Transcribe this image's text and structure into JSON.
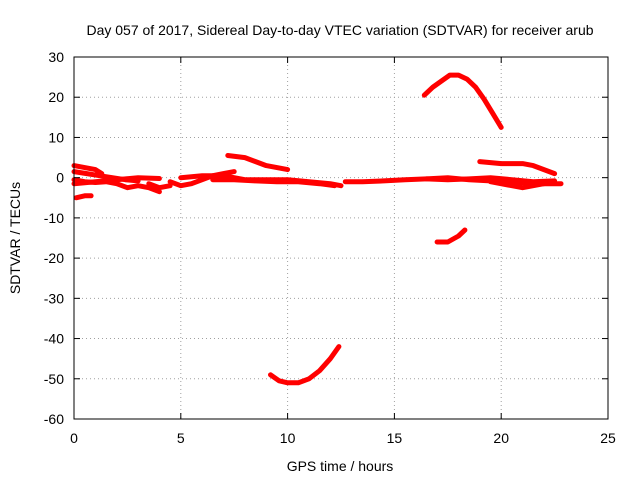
{
  "chart_data": {
    "type": "scatter",
    "title": "Day 057 of 2017, Sidereal Day-to-day VTEC variation (SDTVAR) for receiver arub",
    "xlabel": "GPS time / hours",
    "ylabel": "SDTVAR / TECUs",
    "xlim": [
      0,
      25
    ],
    "ylim": [
      -60,
      30
    ],
    "xticks": [
      0,
      5,
      10,
      15,
      20,
      25
    ],
    "yticks": [
      -60,
      -50,
      -40,
      -30,
      -20,
      -10,
      0,
      10,
      20,
      30
    ],
    "grid": true,
    "series_color": "#ff0000",
    "series": [
      {
        "points": [
          [
            0.0,
            3.0
          ],
          [
            0.5,
            2.5
          ],
          [
            1.0,
            2.0
          ],
          [
            1.3,
            1.0
          ]
        ]
      },
      {
        "points": [
          [
            0.0,
            1.5
          ],
          [
            0.6,
            1.0
          ],
          [
            1.2,
            0.5
          ],
          [
            1.8,
            0.0
          ],
          [
            2.4,
            -0.5
          ],
          [
            3.0,
            -0.8
          ]
        ]
      },
      {
        "points": [
          [
            0.0,
            -0.5
          ],
          [
            0.5,
            -1.0
          ],
          [
            1.0,
            -1.2
          ],
          [
            1.5,
            -1.0
          ],
          [
            2.0,
            -1.5
          ],
          [
            2.5,
            -2.5
          ],
          [
            3.0,
            -2.0
          ],
          [
            3.5,
            -2.5
          ],
          [
            4.0,
            -3.5
          ]
        ]
      },
      {
        "points": [
          [
            0.0,
            -1.5
          ],
          [
            1.0,
            -1.0
          ],
          [
            2.0,
            -0.5
          ],
          [
            3.0,
            0.0
          ],
          [
            4.0,
            -0.2
          ]
        ]
      },
      {
        "points": [
          [
            0.1,
            -5.0
          ],
          [
            0.5,
            -4.5
          ],
          [
            0.8,
            -4.5
          ]
        ]
      },
      {
        "points": [
          [
            3.5,
            -1.5
          ],
          [
            4.0,
            -2.5
          ],
          [
            4.5,
            -2.0
          ]
        ]
      },
      {
        "points": [
          [
            4.5,
            -1.0
          ],
          [
            5.0,
            -2.0
          ],
          [
            5.5,
            -1.5
          ],
          [
            6.0,
            -0.5
          ],
          [
            6.5,
            0.5
          ],
          [
            7.0,
            1.0
          ],
          [
            7.5,
            1.5
          ]
        ]
      },
      {
        "points": [
          [
            5.0,
            0.0
          ],
          [
            6.0,
            0.5
          ],
          [
            7.0,
            0.5
          ],
          [
            8.0,
            -0.5
          ],
          [
            9.0,
            -0.5
          ],
          [
            10.0,
            -0.5
          ],
          [
            11.0,
            -1.0
          ],
          [
            12.0,
            -1.5
          ],
          [
            12.5,
            -2.0
          ]
        ]
      },
      {
        "points": [
          [
            6.5,
            -0.5
          ],
          [
            7.5,
            -0.5
          ],
          [
            8.5,
            -0.8
          ],
          [
            9.5,
            -1.0
          ],
          [
            10.5,
            -1.0
          ],
          [
            11.5,
            -1.5
          ],
          [
            12.2,
            -2.0
          ]
        ]
      },
      {
        "points": [
          [
            7.2,
            5.5
          ],
          [
            8.0,
            5.0
          ],
          [
            8.5,
            4.0
          ],
          [
            9.0,
            3.0
          ],
          [
            9.5,
            2.5
          ],
          [
            10.0,
            2.0
          ]
        ]
      },
      {
        "points": [
          [
            12.7,
            -1.0
          ],
          [
            13.5,
            -1.0
          ],
          [
            14.5,
            -0.8
          ],
          [
            15.5,
            -0.5
          ],
          [
            16.5,
            -0.3
          ],
          [
            17.5,
            0.0
          ],
          [
            18.5,
            -0.5
          ],
          [
            19.5,
            -0.8
          ],
          [
            20.5,
            -1.0
          ],
          [
            21.5,
            -1.5
          ],
          [
            22.5,
            -1.5
          ],
          [
            22.8,
            -1.5
          ]
        ]
      },
      {
        "points": [
          [
            16.5,
            -0.3
          ],
          [
            17.5,
            -0.5
          ],
          [
            18.5,
            -0.3
          ],
          [
            19.5,
            0.0
          ],
          [
            20.5,
            -0.5
          ],
          [
            21.5,
            -1.0
          ],
          [
            22.5,
            -0.8
          ]
        ]
      },
      {
        "points": [
          [
            19.0,
            4.0
          ],
          [
            20.0,
            3.5
          ],
          [
            21.0,
            3.5
          ],
          [
            21.5,
            3.0
          ],
          [
            22.0,
            2.0
          ],
          [
            22.5,
            1.0
          ]
        ]
      },
      {
        "points": [
          [
            19.5,
            -1.0
          ],
          [
            20.5,
            -2.0
          ],
          [
            21.0,
            -2.5
          ],
          [
            21.5,
            -2.0
          ],
          [
            22.0,
            -1.5
          ]
        ]
      },
      {
        "points": [
          [
            16.4,
            20.5
          ],
          [
            16.8,
            22.5
          ],
          [
            17.2,
            24.0
          ],
          [
            17.6,
            25.5
          ],
          [
            18.0,
            25.5
          ],
          [
            18.4,
            24.5
          ],
          [
            18.8,
            22.5
          ],
          [
            19.2,
            19.5
          ],
          [
            19.6,
            16.0
          ],
          [
            20.0,
            12.5
          ]
        ]
      },
      {
        "points": [
          [
            17.0,
            -16.0
          ],
          [
            17.5,
            -16.0
          ],
          [
            18.0,
            -14.5
          ],
          [
            18.3,
            -13.0
          ]
        ]
      },
      {
        "points": [
          [
            9.2,
            -49.0
          ],
          [
            9.6,
            -50.5
          ],
          [
            10.0,
            -51.0
          ],
          [
            10.5,
            -51.0
          ],
          [
            11.0,
            -50.0
          ],
          [
            11.5,
            -48.0
          ],
          [
            12.0,
            -45.0
          ],
          [
            12.4,
            -42.0
          ]
        ]
      }
    ]
  }
}
